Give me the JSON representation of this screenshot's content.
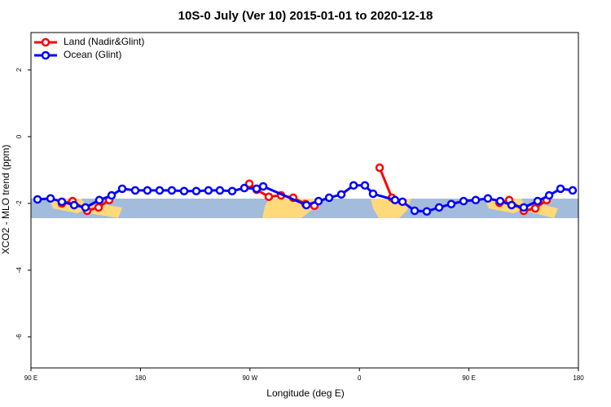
{
  "chart_data": {
    "type": "line",
    "title": "10S-0 July (Ver 10)   2015-01-01 to 2020-12-18",
    "xlabel": "Longitude (deg E)",
    "ylabel": "XCO2 - MLO trend (ppm)",
    "xlim": [
      90,
      540
    ],
    "ylim": [
      -6.93,
      3.12
    ],
    "xticks": [
      {
        "value": 90,
        "label": "90 E"
      },
      180,
      {
        "value": 270,
        "label": "90 W"
      },
      {
        "value": 360,
        "label": "0"
      },
      {
        "value": 450,
        "label": "90 E"
      },
      {
        "value": 540,
        "label": "180"
      }
    ],
    "yticks": [
      -6,
      -4,
      -2,
      0,
      2
    ],
    "legend": "top-left",
    "series": [
      {
        "name": "Land (Nadir&Glint)",
        "color": "#ff0000",
        "x": [
          115.4,
          124.2,
          136.2,
          145.6,
          154.3,
          null,
          269.5,
          275.5,
          285.5,
          295.6,
          305.6,
          315.7,
          323,
          null,
          376.6,
          386.7,
          null,
          475.1,
          483.1,
          495.1,
          504.5,
          513.9
        ],
        "values": [
          -2.0,
          -1.93,
          -2.22,
          -2.12,
          -1.9,
          null,
          -1.41,
          -1.59,
          -1.8,
          -1.76,
          -1.83,
          -2.02,
          -2.07,
          null,
          -0.93,
          -1.83,
          null,
          -1.98,
          -1.9,
          -2.22,
          -2.15,
          -1.9
        ]
      },
      {
        "name": "Ocean (Glint)",
        "color": "#0000ff",
        "x": [
          95.4,
          106.1,
          115.4,
          125.5,
          134.8,
          146.2,
          156.3,
          165,
          175.7,
          185.7,
          195.8,
          205.8,
          215.9,
          225.9,
          235.9,
          245.3,
          255.4,
          265.4,
          275.5,
          280.9,
          316.4,
          326.4,
          335.1,
          345.1,
          355.2,
          364.5,
          371.2,
          389.3,
          395.4,
          405.4,
          415.4,
          425.5,
          435.5,
          445.6,
          455.6,
          465.6,
          475.7,
          485.1,
          495.1,
          506.5,
          515.9,
          525.3,
          535.3
        ],
        "values": [
          -1.88,
          -1.85,
          -1.95,
          -2.05,
          -2.12,
          -1.9,
          -1.76,
          -1.56,
          -1.61,
          -1.61,
          -1.61,
          -1.61,
          -1.63,
          -1.63,
          -1.61,
          -1.61,
          -1.63,
          -1.54,
          -1.56,
          -1.49,
          -2.05,
          -1.93,
          -1.83,
          -1.73,
          -1.46,
          -1.46,
          -1.71,
          -1.9,
          -1.95,
          -2.22,
          -2.24,
          -2.12,
          -2.02,
          -1.93,
          -1.9,
          -1.85,
          -1.93,
          -2.05,
          -2.12,
          -1.93,
          -1.76,
          -1.56,
          -1.61
        ]
      }
    ]
  }
}
